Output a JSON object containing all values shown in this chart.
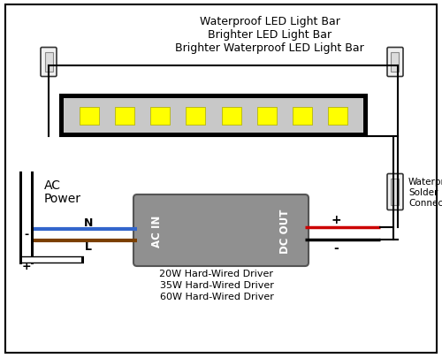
{
  "title_lines": [
    "Waterproof LED Light Bar",
    "Brighter LED Light Bar",
    "Brighter Waterproof LED Light Bar"
  ],
  "driver_labels": [
    "20W Hard-Wired Driver",
    "35W Hard-Wired Driver",
    "60W Hard-Wired Driver"
  ],
  "ac_power_label": [
    "AC",
    "Power"
  ],
  "ac_in_label": "AC IN",
  "dc_out_label": "DC OUT",
  "waterproof_connector_label": [
    "Waterproof",
    "Solder",
    "Connector"
  ],
  "bg_color": "#ffffff",
  "border_color": "#000000",
  "led_bar_fill": "#c8c8c8",
  "led_bar_inner_fill": "#b0b0b0",
  "led_color": "#ffff00",
  "driver_box_color": "#909090",
  "wire_black": "#000000",
  "wire_red": "#cc0000",
  "wire_blue": "#3366cc",
  "wire_brown": "#7B3F00",
  "text_color": "#000000",
  "minus_label": "-",
  "plus_label": "+",
  "n_label": "N",
  "l_label": "L",
  "plus_dc": "+",
  "minus_dc": "-"
}
